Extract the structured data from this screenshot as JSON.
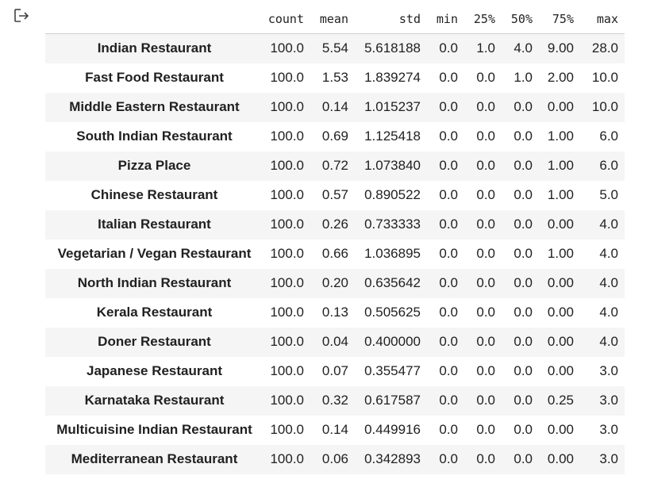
{
  "output_icon": "output-arrow-icon",
  "table": {
    "columns": [
      "count",
      "mean",
      "std",
      "min",
      "25%",
      "50%",
      "75%",
      "max"
    ],
    "rows": [
      {
        "index": "Indian Restaurant",
        "values": [
          "100.0",
          "5.54",
          "5.618188",
          "0.0",
          "1.0",
          "4.0",
          "9.00",
          "28.0"
        ]
      },
      {
        "index": "Fast Food Restaurant",
        "values": [
          "100.0",
          "1.53",
          "1.839274",
          "0.0",
          "0.0",
          "1.0",
          "2.00",
          "10.0"
        ]
      },
      {
        "index": "Middle Eastern Restaurant",
        "values": [
          "100.0",
          "0.14",
          "1.015237",
          "0.0",
          "0.0",
          "0.0",
          "0.00",
          "10.0"
        ]
      },
      {
        "index": "South Indian Restaurant",
        "values": [
          "100.0",
          "0.69",
          "1.125418",
          "0.0",
          "0.0",
          "0.0",
          "1.00",
          "6.0"
        ]
      },
      {
        "index": "Pizza Place",
        "values": [
          "100.0",
          "0.72",
          "1.073840",
          "0.0",
          "0.0",
          "0.0",
          "1.00",
          "6.0"
        ]
      },
      {
        "index": "Chinese Restaurant",
        "values": [
          "100.0",
          "0.57",
          "0.890522",
          "0.0",
          "0.0",
          "0.0",
          "1.00",
          "5.0"
        ]
      },
      {
        "index": "Italian Restaurant",
        "values": [
          "100.0",
          "0.26",
          "0.733333",
          "0.0",
          "0.0",
          "0.0",
          "0.00",
          "4.0"
        ]
      },
      {
        "index": "Vegetarian / Vegan Restaurant",
        "values": [
          "100.0",
          "0.66",
          "1.036895",
          "0.0",
          "0.0",
          "0.0",
          "1.00",
          "4.0"
        ]
      },
      {
        "index": "North Indian Restaurant",
        "values": [
          "100.0",
          "0.20",
          "0.635642",
          "0.0",
          "0.0",
          "0.0",
          "0.00",
          "4.0"
        ]
      },
      {
        "index": "Kerala Restaurant",
        "values": [
          "100.0",
          "0.13",
          "0.505625",
          "0.0",
          "0.0",
          "0.0",
          "0.00",
          "4.0"
        ]
      },
      {
        "index": "Doner Restaurant",
        "values": [
          "100.0",
          "0.04",
          "0.400000",
          "0.0",
          "0.0",
          "0.0",
          "0.00",
          "4.0"
        ]
      },
      {
        "index": "Japanese Restaurant",
        "values": [
          "100.0",
          "0.07",
          "0.355477",
          "0.0",
          "0.0",
          "0.0",
          "0.00",
          "3.0"
        ]
      },
      {
        "index": "Karnataka Restaurant",
        "values": [
          "100.0",
          "0.32",
          "0.617587",
          "0.0",
          "0.0",
          "0.0",
          "0.25",
          "3.0"
        ]
      },
      {
        "index": "Multicuisine Indian Restaurant",
        "values": [
          "100.0",
          "0.14",
          "0.449916",
          "0.0",
          "0.0",
          "0.0",
          "0.00",
          "3.0"
        ]
      },
      {
        "index": "Mediterranean Restaurant",
        "values": [
          "100.0",
          "0.06",
          "0.342893",
          "0.0",
          "0.0",
          "0.0",
          "0.00",
          "3.0"
        ]
      }
    ]
  }
}
